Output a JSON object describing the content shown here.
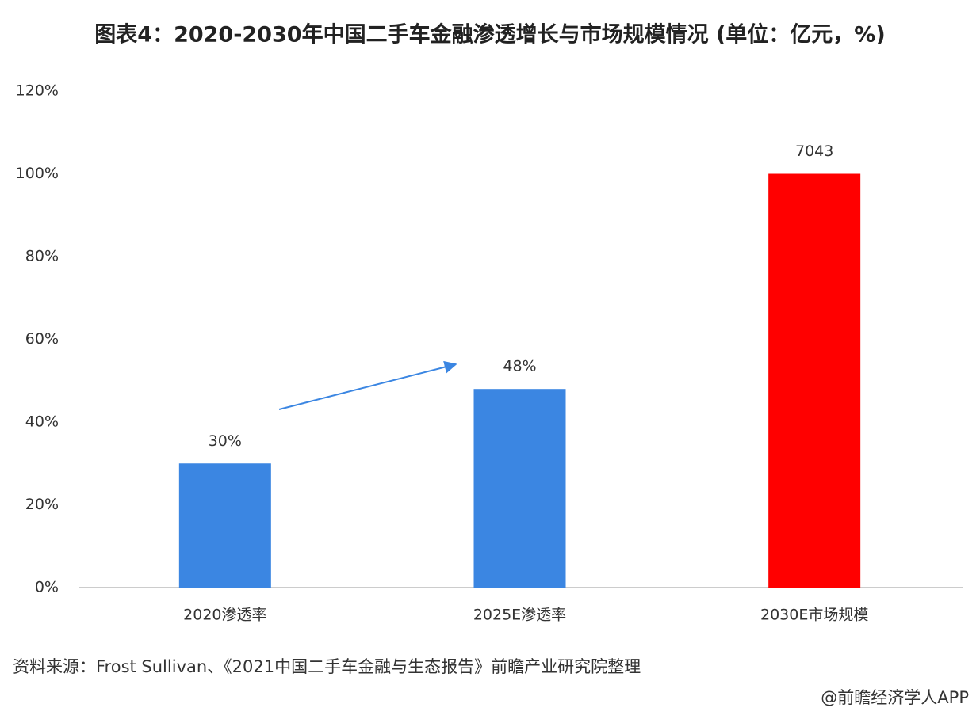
{
  "chart_data": {
    "type": "bar",
    "title": "图表4：2020-2030年中国二手车金融渗透增长与市场规模情况 (单位：亿元，%)",
    "categories": [
      "2020渗透率",
      "2025E渗透率",
      "2030E市场规模"
    ],
    "values": [
      30,
      48,
      100
    ],
    "value_labels": [
      "30%",
      "48%",
      null
    ],
    "colors": [
      "#3b86e2",
      "#3b86e2",
      "#ff0000"
    ],
    "annotations": [
      {
        "text": "7043",
        "category": "2030E市场规模"
      }
    ],
    "ylim": [
      0,
      120
    ],
    "yticks": [
      {
        "value": 0,
        "label": "0%"
      },
      {
        "value": 20,
        "label": "20%"
      },
      {
        "value": 40,
        "label": "40%"
      },
      {
        "value": 60,
        "label": "60%"
      },
      {
        "value": 80,
        "label": "80%"
      },
      {
        "value": 100,
        "label": "100%"
      },
      {
        "value": 120,
        "label": "120%"
      }
    ],
    "grid": false,
    "source": "资料来源：Frost Sullivan、《2021中国二手车金融与生态报告》前瞻产业研究院整理",
    "credit": "@前瞻经济学人APP"
  }
}
